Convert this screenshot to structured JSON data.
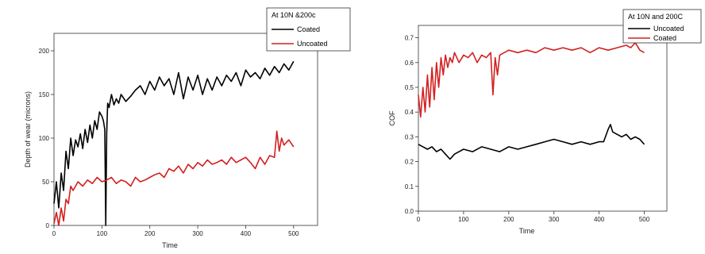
{
  "chart_data": [
    {
      "type": "line",
      "title": "",
      "xlabel": "Time",
      "ylabel": "Depth of wear (microns)",
      "xlim": [
        0,
        550
      ],
      "ylim": [
        0,
        220
      ],
      "xticks": [
        0,
        100,
        200,
        300,
        400,
        500
      ],
      "yticks": [
        0,
        50,
        100,
        150,
        200
      ],
      "grid": false,
      "legend": {
        "title": "At 10N &200c",
        "placement": "top-right",
        "entries": [
          "Coated",
          "Uncoated"
        ]
      },
      "series": [
        {
          "name": "Coated",
          "color": "#000000",
          "x": [
            0,
            5,
            10,
            15,
            20,
            25,
            30,
            35,
            40,
            45,
            50,
            55,
            60,
            65,
            70,
            75,
            80,
            85,
            90,
            95,
            100,
            103,
            106,
            108,
            110,
            112,
            115,
            120,
            125,
            130,
            135,
            140,
            150,
            160,
            170,
            180,
            190,
            200,
            210,
            220,
            230,
            240,
            250,
            260,
            270,
            280,
            290,
            300,
            310,
            320,
            330,
            340,
            350,
            360,
            370,
            380,
            390,
            400,
            410,
            420,
            430,
            440,
            450,
            460,
            470,
            480,
            490,
            500
          ],
          "y": [
            25,
            50,
            20,
            60,
            40,
            85,
            65,
            100,
            80,
            98,
            90,
            105,
            88,
            110,
            95,
            115,
            100,
            120,
            110,
            130,
            125,
            120,
            110,
            0,
            105,
            140,
            135,
            150,
            138,
            145,
            140,
            150,
            142,
            148,
            155,
            160,
            150,
            165,
            155,
            170,
            160,
            168,
            150,
            175,
            145,
            170,
            155,
            172,
            150,
            168,
            155,
            170,
            160,
            172,
            165,
            175,
            160,
            178,
            170,
            175,
            168,
            180,
            172,
            182,
            175,
            185,
            178,
            188
          ]
        },
        {
          "name": "Uncoated",
          "color": "#d42020",
          "x": [
            0,
            5,
            10,
            15,
            20,
            25,
            30,
            35,
            40,
            50,
            60,
            70,
            80,
            90,
            100,
            110,
            120,
            130,
            140,
            150,
            160,
            170,
            180,
            190,
            200,
            210,
            220,
            230,
            240,
            250,
            260,
            270,
            280,
            290,
            300,
            310,
            320,
            330,
            340,
            350,
            360,
            370,
            380,
            390,
            400,
            410,
            420,
            430,
            440,
            450,
            460,
            465,
            470,
            475,
            480,
            490,
            500
          ],
          "y": [
            2,
            15,
            0,
            20,
            5,
            30,
            25,
            45,
            40,
            50,
            45,
            52,
            48,
            55,
            50,
            52,
            55,
            48,
            52,
            50,
            45,
            55,
            50,
            52,
            55,
            58,
            60,
            55,
            65,
            62,
            68,
            60,
            70,
            65,
            72,
            68,
            75,
            70,
            72,
            75,
            70,
            78,
            72,
            75,
            78,
            72,
            65,
            78,
            70,
            80,
            78,
            108,
            85,
            100,
            92,
            98,
            90
          ]
        }
      ]
    },
    {
      "type": "line",
      "title": "",
      "xlabel": "Time",
      "ylabel": "COF",
      "xlim": [
        0,
        550
      ],
      "ylim": [
        0,
        0.75
      ],
      "xticks": [
        0,
        100,
        200,
        300,
        400,
        500
      ],
      "yticks": [
        0.0,
        0.1,
        0.2,
        0.3,
        0.4,
        0.5,
        0.6,
        0.7
      ],
      "ytick_labels": [
        "0.0",
        "0.1",
        "0.2",
        "0.3",
        "0.4",
        "0.5",
        "0.6",
        "0.7"
      ],
      "grid": false,
      "legend": {
        "title": "At 10N and 200C",
        "placement": "top-right",
        "entries": [
          "Uncoated",
          "Coated"
        ]
      },
      "series": [
        {
          "name": "Uncoated",
          "color": "#000000",
          "x": [
            0,
            10,
            20,
            30,
            40,
            50,
            60,
            70,
            80,
            90,
            100,
            120,
            140,
            160,
            180,
            200,
            220,
            240,
            260,
            280,
            300,
            320,
            340,
            360,
            380,
            400,
            410,
            420,
            425,
            430,
            440,
            450,
            460,
            470,
            480,
            490,
            500
          ],
          "y": [
            0.27,
            0.26,
            0.25,
            0.26,
            0.24,
            0.25,
            0.23,
            0.21,
            0.23,
            0.24,
            0.25,
            0.24,
            0.26,
            0.25,
            0.24,
            0.26,
            0.25,
            0.26,
            0.27,
            0.28,
            0.29,
            0.28,
            0.27,
            0.28,
            0.27,
            0.28,
            0.28,
            0.33,
            0.35,
            0.32,
            0.31,
            0.3,
            0.31,
            0.29,
            0.3,
            0.29,
            0.27
          ]
        },
        {
          "name": "Coated",
          "color": "#d42020",
          "x": [
            0,
            5,
            10,
            15,
            20,
            25,
            30,
            35,
            40,
            45,
            50,
            55,
            60,
            65,
            70,
            75,
            80,
            90,
            100,
            110,
            120,
            130,
            140,
            150,
            160,
            165,
            170,
            175,
            180,
            190,
            200,
            220,
            240,
            260,
            280,
            300,
            320,
            340,
            360,
            380,
            400,
            420,
            440,
            460,
            470,
            480,
            490,
            500
          ],
          "y": [
            0.47,
            0.38,
            0.5,
            0.4,
            0.55,
            0.42,
            0.58,
            0.45,
            0.6,
            0.5,
            0.62,
            0.55,
            0.63,
            0.58,
            0.62,
            0.6,
            0.64,
            0.6,
            0.63,
            0.62,
            0.64,
            0.6,
            0.63,
            0.62,
            0.64,
            0.47,
            0.62,
            0.55,
            0.63,
            0.64,
            0.65,
            0.64,
            0.65,
            0.64,
            0.66,
            0.65,
            0.66,
            0.65,
            0.66,
            0.64,
            0.66,
            0.65,
            0.66,
            0.67,
            0.66,
            0.68,
            0.65,
            0.64
          ]
        }
      ]
    }
  ]
}
